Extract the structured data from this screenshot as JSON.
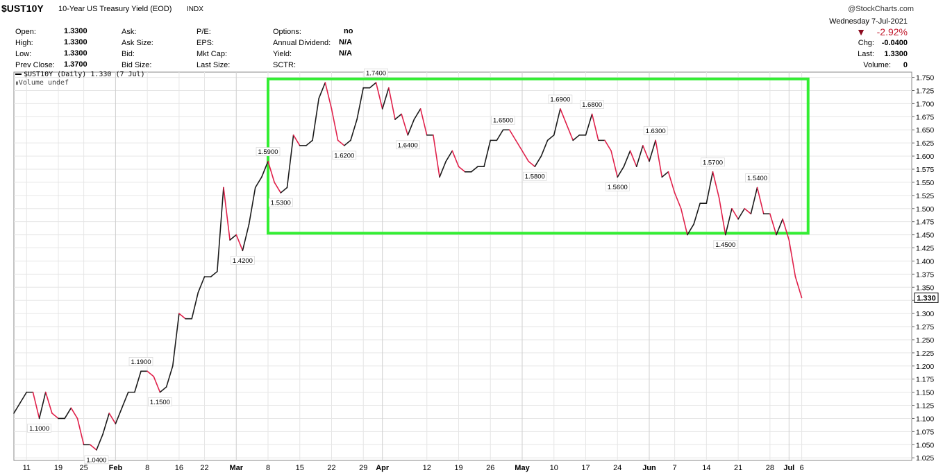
{
  "header": {
    "symbol": "$UST10Y",
    "description": "10-Year US Treasury Yield (EOD)",
    "exchange": "INDX",
    "brand": "@StockCharts.com",
    "date": "Wednesday  7-Jul-2021",
    "change_pct": "-2.92%",
    "chg_label": "Chg:",
    "chg_value": "-0.0400",
    "last_label": "Last:",
    "last_value": "1.3300",
    "volume_label": "Volume:",
    "volume_value": "0"
  },
  "quote": {
    "col1": [
      {
        "label": "Open:",
        "value": "1.3300"
      },
      {
        "label": "High:",
        "value": "1.3300"
      },
      {
        "label": "Low:",
        "value": "1.3300"
      },
      {
        "label": "Prev Close:",
        "value": "1.3700"
      }
    ],
    "col2": [
      {
        "label": "Ask:"
      },
      {
        "label": "Ask Size:"
      },
      {
        "label": "Bid:"
      },
      {
        "label": "Bid Size:"
      }
    ],
    "col3": [
      {
        "label": "P/E:"
      },
      {
        "label": "EPS:"
      },
      {
        "label": "Mkt Cap:"
      },
      {
        "label": "Last Size:"
      }
    ],
    "col4": [
      {
        "label": "Options:",
        "value": "no"
      },
      {
        "label": "Annual Dividend:",
        "value": "N/A"
      },
      {
        "label": "Yield:",
        "value": "N/A"
      },
      {
        "label": "SCTR:",
        "value": ""
      }
    ]
  },
  "legend": {
    "series_label": "$UST10Y (Daily) 1.330 (7 Jul)",
    "volume_label": "Volume undef"
  },
  "chart_data": {
    "type": "line",
    "up_color": "#1a1a1a",
    "down_color": "#e0204a",
    "box_color": "#33ee33",
    "grid": true,
    "ylim": [
      1.02,
      1.76
    ],
    "yticks": [
      "1.025",
      "1.050",
      "1.075",
      "1.100",
      "1.125",
      "1.150",
      "1.175",
      "1.200",
      "1.225",
      "1.250",
      "1.275",
      "1.300",
      "1.325",
      "1.350",
      "1.375",
      "1.400",
      "1.425",
      "1.450",
      "1.475",
      "1.500",
      "1.525",
      "1.550",
      "1.575",
      "1.600",
      "1.625",
      "1.650",
      "1.675",
      "1.700",
      "1.725",
      "1.750"
    ],
    "xticks": [
      {
        "label": "11",
        "date": "2021-01-11",
        "bold": false
      },
      {
        "label": "19",
        "date": "2021-01-19",
        "bold": false
      },
      {
        "label": "25",
        "date": "2021-01-25",
        "bold": false
      },
      {
        "label": "Feb",
        "date": "2021-02-01",
        "bold": true
      },
      {
        "label": "8",
        "date": "2021-02-08",
        "bold": false
      },
      {
        "label": "16",
        "date": "2021-02-16",
        "bold": false
      },
      {
        "label": "22",
        "date": "2021-02-22",
        "bold": false
      },
      {
        "label": "Mar",
        "date": "2021-03-01",
        "bold": true
      },
      {
        "label": "8",
        "date": "2021-03-08",
        "bold": false
      },
      {
        "label": "15",
        "date": "2021-03-15",
        "bold": false
      },
      {
        "label": "22",
        "date": "2021-03-22",
        "bold": false
      },
      {
        "label": "29",
        "date": "2021-03-29",
        "bold": false
      },
      {
        "label": "Apr",
        "date": "2021-04-01",
        "bold": true
      },
      {
        "label": "12",
        "date": "2021-04-12",
        "bold": false
      },
      {
        "label": "19",
        "date": "2021-04-19",
        "bold": false
      },
      {
        "label": "26",
        "date": "2021-04-26",
        "bold": false
      },
      {
        "label": "May",
        "date": "2021-05-03",
        "bold": true
      },
      {
        "label": "10",
        "date": "2021-05-10",
        "bold": false
      },
      {
        "label": "17",
        "date": "2021-05-17",
        "bold": false
      },
      {
        "label": "24",
        "date": "2021-05-24",
        "bold": false
      },
      {
        "label": "Jun",
        "date": "2021-06-01",
        "bold": true
      },
      {
        "label": "7",
        "date": "2021-06-07",
        "bold": false
      },
      {
        "label": "14",
        "date": "2021-06-14",
        "bold": false
      },
      {
        "label": "21",
        "date": "2021-06-21",
        "bold": false
      },
      {
        "label": "28",
        "date": "2021-06-28",
        "bold": false
      },
      {
        "label": "Jul",
        "date": "2021-07-01",
        "bold": true
      },
      {
        "label": "6",
        "date": "2021-07-06",
        "bold": false
      }
    ],
    "last_value_label": "1.330",
    "series": [
      {
        "points": [
          [
            "2021-01-07",
            1.11
          ],
          [
            "2021-01-08",
            1.13
          ],
          [
            "2021-01-11",
            1.15
          ],
          [
            "2021-01-12",
            1.15
          ],
          [
            "2021-01-13",
            1.1
          ],
          [
            "2021-01-14",
            1.15
          ],
          [
            "2021-01-15",
            1.11
          ],
          [
            "2021-01-19",
            1.1
          ],
          [
            "2021-01-20",
            1.1
          ],
          [
            "2021-01-21",
            1.12
          ],
          [
            "2021-01-22",
            1.1
          ],
          [
            "2021-01-25",
            1.05
          ],
          [
            "2021-01-26",
            1.05
          ],
          [
            "2021-01-27",
            1.04
          ],
          [
            "2021-01-28",
            1.07
          ],
          [
            "2021-01-29",
            1.11
          ],
          [
            "2021-02-01",
            1.09
          ],
          [
            "2021-02-02",
            1.12
          ],
          [
            "2021-02-03",
            1.15
          ],
          [
            "2021-02-04",
            1.15
          ],
          [
            "2021-02-05",
            1.19
          ],
          [
            "2021-02-08",
            1.19
          ],
          [
            "2021-02-09",
            1.18
          ],
          [
            "2021-02-10",
            1.15
          ],
          [
            "2021-02-11",
            1.16
          ],
          [
            "2021-02-12",
            1.2
          ],
          [
            "2021-02-16",
            1.3
          ],
          [
            "2021-02-17",
            1.29
          ],
          [
            "2021-02-18",
            1.29
          ],
          [
            "2021-02-19",
            1.34
          ],
          [
            "2021-02-22",
            1.37
          ],
          [
            "2021-02-23",
            1.37
          ],
          [
            "2021-02-24",
            1.38
          ],
          [
            "2021-02-25",
            1.54
          ],
          [
            "2021-02-26",
            1.44
          ],
          [
            "2021-03-01",
            1.45
          ],
          [
            "2021-03-02",
            1.42
          ],
          [
            "2021-03-03",
            1.47
          ],
          [
            "2021-03-04",
            1.54
          ],
          [
            "2021-03-05",
            1.56
          ],
          [
            "2021-03-08",
            1.59
          ],
          [
            "2021-03-09",
            1.55
          ],
          [
            "2021-03-10",
            1.53
          ],
          [
            "2021-03-11",
            1.54
          ],
          [
            "2021-03-12",
            1.64
          ],
          [
            "2021-03-15",
            1.62
          ],
          [
            "2021-03-16",
            1.62
          ],
          [
            "2021-03-17",
            1.63
          ],
          [
            "2021-03-18",
            1.71
          ],
          [
            "2021-03-19",
            1.74
          ],
          [
            "2021-03-22",
            1.69
          ],
          [
            "2021-03-23",
            1.63
          ],
          [
            "2021-03-24",
            1.62
          ],
          [
            "2021-03-25",
            1.63
          ],
          [
            "2021-03-26",
            1.67
          ],
          [
            "2021-03-29",
            1.73
          ],
          [
            "2021-03-30",
            1.73
          ],
          [
            "2021-03-31",
            1.74
          ],
          [
            "2021-04-01",
            1.69
          ],
          [
            "2021-04-02",
            1.73
          ],
          [
            "2021-04-05",
            1.67
          ],
          [
            "2021-04-06",
            1.68
          ],
          [
            "2021-04-07",
            1.64
          ],
          [
            "2021-04-08",
            1.67
          ],
          [
            "2021-04-09",
            1.69
          ],
          [
            "2021-04-12",
            1.64
          ],
          [
            "2021-04-13",
            1.64
          ],
          [
            "2021-04-14",
            1.56
          ],
          [
            "2021-04-15",
            1.59
          ],
          [
            "2021-04-16",
            1.61
          ],
          [
            "2021-04-19",
            1.58
          ],
          [
            "2021-04-20",
            1.57
          ],
          [
            "2021-04-21",
            1.57
          ],
          [
            "2021-04-22",
            1.58
          ],
          [
            "2021-04-23",
            1.58
          ],
          [
            "2021-04-26",
            1.63
          ],
          [
            "2021-04-27",
            1.63
          ],
          [
            "2021-04-28",
            1.65
          ],
          [
            "2021-04-29",
            1.65
          ],
          [
            "2021-04-30",
            1.63
          ],
          [
            "2021-05-03",
            1.61
          ],
          [
            "2021-05-04",
            1.59
          ],
          [
            "2021-05-05",
            1.58
          ],
          [
            "2021-05-06",
            1.6
          ],
          [
            "2021-05-07",
            1.63
          ],
          [
            "2021-05-10",
            1.64
          ],
          [
            "2021-05-11",
            1.69
          ],
          [
            "2021-05-12",
            1.66
          ],
          [
            "2021-05-13",
            1.63
          ],
          [
            "2021-05-14",
            1.64
          ],
          [
            "2021-05-17",
            1.64
          ],
          [
            "2021-05-18",
            1.68
          ],
          [
            "2021-05-19",
            1.63
          ],
          [
            "2021-05-20",
            1.63
          ],
          [
            "2021-05-21",
            1.61
          ],
          [
            "2021-05-24",
            1.56
          ],
          [
            "2021-05-25",
            1.58
          ],
          [
            "2021-05-26",
            1.61
          ],
          [
            "2021-05-27",
            1.58
          ],
          [
            "2021-05-28",
            1.62
          ],
          [
            "2021-06-01",
            1.59
          ],
          [
            "2021-06-02",
            1.63
          ],
          [
            "2021-06-03",
            1.56
          ],
          [
            "2021-06-04",
            1.57
          ],
          [
            "2021-06-07",
            1.53
          ],
          [
            "2021-06-08",
            1.5
          ],
          [
            "2021-06-09",
            1.45
          ],
          [
            "2021-06-10",
            1.47
          ],
          [
            "2021-06-11",
            1.51
          ],
          [
            "2021-06-14",
            1.51
          ],
          [
            "2021-06-15",
            1.57
          ],
          [
            "2021-06-16",
            1.52
          ],
          [
            "2021-06-17",
            1.45
          ],
          [
            "2021-06-18",
            1.5
          ],
          [
            "2021-06-21",
            1.48
          ],
          [
            "2021-06-22",
            1.5
          ],
          [
            "2021-06-23",
            1.49
          ],
          [
            "2021-06-24",
            1.54
          ],
          [
            "2021-06-25",
            1.49
          ],
          [
            "2021-06-28",
            1.49
          ],
          [
            "2021-06-29",
            1.45
          ],
          [
            "2021-06-30",
            1.48
          ],
          [
            "2021-07-01",
            1.44
          ],
          [
            "2021-07-02",
            1.37
          ],
          [
            "2021-07-06",
            1.33
          ]
        ]
      }
    ],
    "annotations": [
      {
        "date": "2021-01-13",
        "value": 1.1,
        "text": "1.1000",
        "pos": "below"
      },
      {
        "date": "2021-01-27",
        "value": 1.04,
        "text": "1.0400",
        "pos": "below"
      },
      {
        "date": "2021-02-05",
        "value": 1.19,
        "text": "1.1900",
        "pos": "above"
      },
      {
        "date": "2021-02-10",
        "value": 1.15,
        "text": "1.1500",
        "pos": "below"
      },
      {
        "date": "2021-03-02",
        "value": 1.42,
        "text": "1.4200",
        "pos": "below"
      },
      {
        "date": "2021-03-08",
        "value": 1.59,
        "text": "1.5900",
        "pos": "above"
      },
      {
        "date": "2021-03-10",
        "value": 1.53,
        "text": "1.5300",
        "pos": "below"
      },
      {
        "date": "2021-03-31",
        "value": 1.74,
        "text": "1.7400",
        "pos": "above"
      },
      {
        "date": "2021-03-24",
        "value": 1.62,
        "text": "1.6200",
        "pos": "below"
      },
      {
        "date": "2021-04-07",
        "value": 1.64,
        "text": "1.6400",
        "pos": "below"
      },
      {
        "date": "2021-04-28",
        "value": 1.65,
        "text": "1.6500",
        "pos": "above"
      },
      {
        "date": "2021-05-05",
        "value": 1.58,
        "text": "1.5800",
        "pos": "below"
      },
      {
        "date": "2021-05-11",
        "value": 1.69,
        "text": "1.6900",
        "pos": "above"
      },
      {
        "date": "2021-05-18",
        "value": 1.68,
        "text": "1.6800",
        "pos": "above"
      },
      {
        "date": "2021-05-24",
        "value": 1.56,
        "text": "1.5600",
        "pos": "below"
      },
      {
        "date": "2021-06-02",
        "value": 1.63,
        "text": "1.6300",
        "pos": "above"
      },
      {
        "date": "2021-06-15",
        "value": 1.57,
        "text": "1.5700",
        "pos": "above"
      },
      {
        "date": "2021-06-17",
        "value": 1.45,
        "text": "1.4500",
        "pos": "below"
      },
      {
        "date": "2021-06-24",
        "value": 1.54,
        "text": "1.5400",
        "pos": "above"
      }
    ],
    "box": {
      "x_start": "2021-03-08",
      "x_end": "2021-07-07",
      "y_low": 1.453,
      "y_high": 1.747
    }
  }
}
